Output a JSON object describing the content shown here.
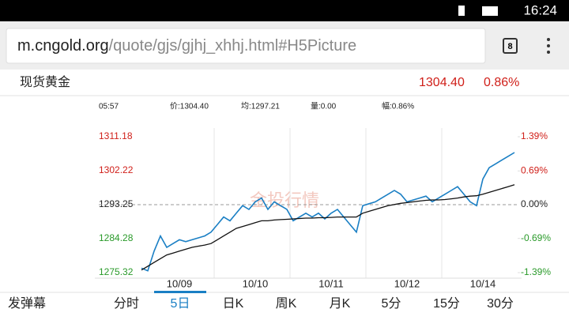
{
  "status_bar": {
    "time": "16:24"
  },
  "url_bar": {
    "host": "m.cngold.org",
    "path": "/quote/gjs/gjhj_xhhj.html#H5Picture",
    "tab_count": "8"
  },
  "header": {
    "name": "现货黄金",
    "price": "1304.40",
    "change": "0.86%"
  },
  "info_row": [
    "05:57",
    "价:1304.40",
    "均:1297.21",
    "量:0.00",
    "幅:0.86%"
  ],
  "watermark": "金投行情",
  "chart_data": {
    "type": "line",
    "grid": true,
    "categories": [
      null,
      null,
      null,
      null,
      null,
      null,
      "10/09",
      null,
      null,
      null,
      null,
      null,
      null,
      null,
      null,
      null,
      null,
      null,
      "10/10",
      null,
      null,
      null,
      null,
      null,
      null,
      null,
      null,
      null,
      null,
      null,
      "10/11",
      null,
      null,
      null,
      null,
      null,
      null,
      null,
      null,
      null,
      null,
      null,
      "10/12",
      null,
      null,
      null,
      null,
      null,
      null,
      null,
      null,
      null,
      null,
      null,
      "10/14",
      null,
      null,
      null,
      null,
      null
    ],
    "series": [
      {
        "name": "价",
        "color": "#1a7fc4",
        "values": [
          1276.5,
          1275.8,
          1281,
          1285,
          1282,
          1283,
          1284,
          1283.5,
          1284,
          1284.5,
          1285,
          1286,
          1288,
          1290,
          1289,
          1291,
          1293,
          1292,
          1294,
          1295,
          1292,
          1294,
          1293,
          1292,
          1289,
          1290,
          1291,
          1290,
          1291,
          1289.5,
          1291,
          1292,
          1290,
          1288,
          1286,
          1293,
          1293.5,
          1294,
          1295,
          1296,
          1297,
          1296,
          1294,
          1294.5,
          1295,
          1295.5,
          1294,
          1295,
          1296,
          1297,
          1298,
          1296,
          1294,
          1293,
          1300,
          1303,
          1304,
          1305,
          1306,
          1307
        ]
      },
      {
        "name": "均",
        "color": "#111111",
        "values": [
          1276,
          1277,
          1278,
          1279,
          1280,
          1280.5,
          1281,
          1281.5,
          1282,
          1282.3,
          1282.6,
          1283,
          1284,
          1285,
          1286,
          1287,
          1287.5,
          1288,
          1288.5,
          1289,
          1289,
          1289.2,
          1289.3,
          1289.4,
          1289.5,
          1289.6,
          1289.7,
          1289.7,
          1289.8,
          1289.8,
          1289.9,
          1290,
          1290,
          1290,
          1290,
          1291,
          1291.5,
          1292,
          1292.5,
          1293,
          1293.3,
          1293.6,
          1293.8,
          1294,
          1294.2,
          1294.4,
          1294.5,
          1294.5,
          1294.6,
          1294.8,
          1295,
          1295.3,
          1295.5,
          1295.6,
          1296,
          1296.5,
          1297,
          1297.5,
          1298,
          1298.5
        ]
      }
    ],
    "ylim": [
      1275.32,
      1311.18
    ],
    "yticks": [
      1275.32,
      1284.28,
      1293.25,
      1302.22,
      1311.18
    ],
    "y2lim": [
      -1.39,
      1.39
    ],
    "y2ticks": [
      {
        "value": -1.39,
        "label": "-1.39%"
      },
      {
        "value": -0.69,
        "label": "-0.69%"
      },
      {
        "value": 0,
        "label": "0.00%"
      },
      {
        "value": 0.69,
        "label": "0.69%"
      },
      {
        "value": 1.39,
        "label": "1.39%"
      }
    ]
  },
  "tabs": {
    "danmu": "发弹幕",
    "items": [
      "分时",
      "5日",
      "日K",
      "周K",
      "月K",
      "5分",
      "15分",
      "30分"
    ],
    "selected_tab": 1
  }
}
